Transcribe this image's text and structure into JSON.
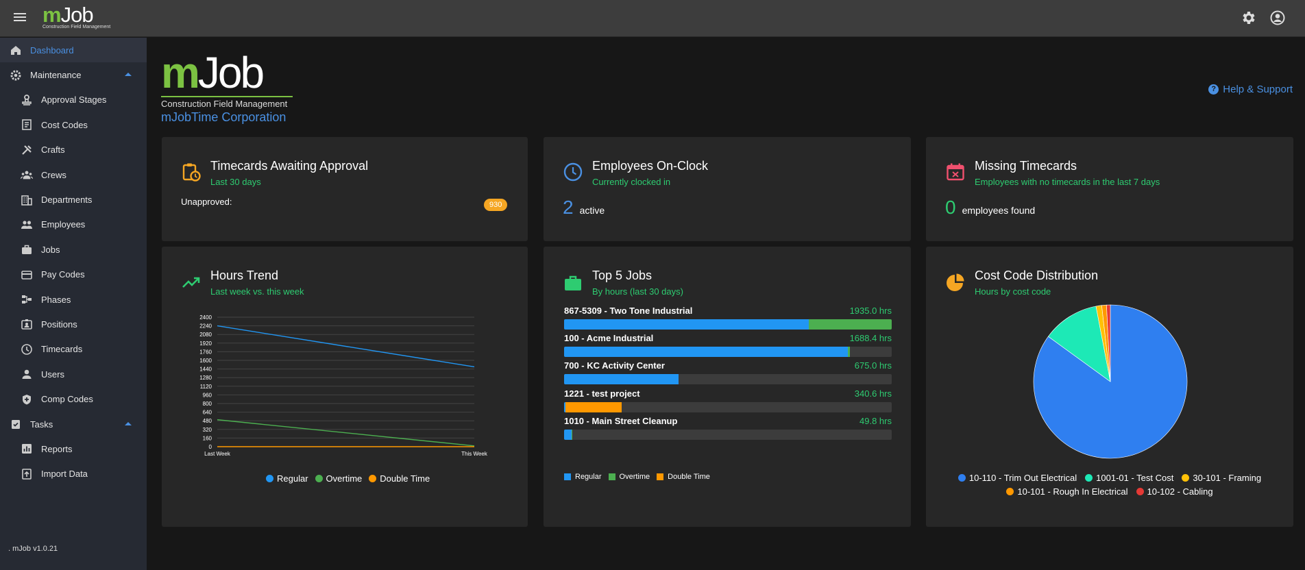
{
  "header": {
    "logo_m": "m",
    "logo_job": "Job",
    "logo_sub": "Construction Field Management"
  },
  "sidebar": {
    "items": [
      {
        "label": "Dashboard",
        "icon": "home-icon",
        "level": "top",
        "active": true
      },
      {
        "label": "Maintenance",
        "icon": "gear-icon",
        "level": "top",
        "expanded": true
      },
      {
        "label": "Approval Stages",
        "icon": "stamp-icon",
        "level": "sub"
      },
      {
        "label": "Cost Codes",
        "icon": "document-icon",
        "level": "sub"
      },
      {
        "label": "Crafts",
        "icon": "tools-icon",
        "level": "sub"
      },
      {
        "label": "Crews",
        "icon": "crew-icon",
        "level": "sub"
      },
      {
        "label": "Departments",
        "icon": "building-icon",
        "level": "sub"
      },
      {
        "label": "Employees",
        "icon": "people-icon",
        "level": "sub"
      },
      {
        "label": "Jobs",
        "icon": "briefcase-icon",
        "level": "sub"
      },
      {
        "label": "Pay Codes",
        "icon": "credit-card-icon",
        "level": "sub"
      },
      {
        "label": "Phases",
        "icon": "flow-icon",
        "level": "sub"
      },
      {
        "label": "Positions",
        "icon": "badge-icon",
        "level": "sub"
      },
      {
        "label": "Timecards",
        "icon": "clock-icon",
        "level": "sub"
      },
      {
        "label": "Users",
        "icon": "user-icon",
        "level": "sub"
      },
      {
        "label": "Comp Codes",
        "icon": "shield-icon",
        "level": "sub"
      },
      {
        "label": "Tasks",
        "icon": "task-icon",
        "level": "top",
        "expanded": true
      },
      {
        "label": "Reports",
        "icon": "report-icon",
        "level": "sub"
      },
      {
        "label": "Import Data",
        "icon": "upload-icon",
        "level": "sub"
      }
    ],
    "version": ". mJob v1.0.21"
  },
  "brand": {
    "logo_m": "m",
    "logo_job": "Job",
    "logo_sub": "Construction Field Management",
    "company": "mJobTime Corporation"
  },
  "help": {
    "label": "Help & Support"
  },
  "cards": {
    "timecards": {
      "title": "Timecards Awaiting Approval",
      "subtitle": "Last 30 days",
      "label": "Unapproved:",
      "badge": "930"
    },
    "onclock": {
      "title": "Employees On-Clock",
      "subtitle": "Currently clocked in",
      "count": "2",
      "suffix": "active"
    },
    "missing": {
      "title": "Missing Timecards",
      "subtitle": "Employees with no timecards in the last 7 days",
      "count": "0",
      "suffix": "employees found"
    },
    "hours": {
      "title": "Hours Trend",
      "subtitle": "Last week vs. this week"
    },
    "top5": {
      "title": "Top 5 Jobs",
      "subtitle": "By hours (last 30 days)"
    },
    "costcode": {
      "title": "Cost Code Distribution",
      "subtitle": "Hours by cost code"
    }
  },
  "colors": {
    "accent": "#4a90e2",
    "green": "#2ecc71",
    "regular": "#2196f3",
    "overtime": "#4caf50",
    "double": "#ff9800"
  },
  "chart_data": [
    {
      "type": "line",
      "categories": [
        "Last Week",
        "This Week"
      ],
      "yticks": [
        0,
        160,
        320,
        480,
        640,
        800,
        960,
        1120,
        1280,
        1440,
        1600,
        1760,
        1920,
        2080,
        2240,
        2400
      ],
      "ylim": [
        0,
        2400
      ],
      "grid": true,
      "legend": "bottom",
      "series": [
        {
          "name": "Regular",
          "color": "#2196f3",
          "values": [
            2240,
            1480
          ]
        },
        {
          "name": "Overtime",
          "color": "#4caf50",
          "values": [
            500,
            15
          ]
        },
        {
          "name": "Double Time",
          "color": "#ff9800",
          "values": [
            0,
            0
          ]
        }
      ]
    },
    {
      "type": "bar",
      "orientation": "horizontal-stacked",
      "max": 1935.0,
      "legend": "bottom-left",
      "series_names": [
        "Regular",
        "Overtime",
        "Double Time"
      ],
      "series_colors": [
        "#2196f3",
        "#4caf50",
        "#ff9800"
      ],
      "jobs": [
        {
          "name": "867-5309 - Two Tone Industrial",
          "hours_label": "1935.0 hrs",
          "regular": 1445,
          "overtime": 490,
          "double": 0
        },
        {
          "name": "100 - Acme Industrial",
          "hours_label": "1688.4 hrs",
          "regular": 1675,
          "overtime": 13.4,
          "double": 0
        },
        {
          "name": "700 - KC Activity Center",
          "hours_label": "675.0 hrs",
          "regular": 675,
          "overtime": 0,
          "double": 0
        },
        {
          "name": "1221 - test project",
          "hours_label": "340.6 hrs",
          "regular": 10,
          "overtime": 0,
          "double": 330.6
        },
        {
          "name": "1010 - Main Street Cleanup",
          "hours_label": "49.8 hrs",
          "regular": 44,
          "overtime": 5.8,
          "double": 0
        }
      ]
    },
    {
      "type": "pie",
      "legend": "bottom",
      "slices": [
        {
          "label": "10-110 - Trim Out Electrical",
          "value": 85,
          "color": "#2f7ff0"
        },
        {
          "label": "1001-01 - Test Cost",
          "value": 12,
          "color": "#1de9b6"
        },
        {
          "label": "30-101 - Framing",
          "value": 1.2,
          "color": "#ffc107"
        },
        {
          "label": "10-101 - Rough In Electrical",
          "value": 1.0,
          "color": "#ff9800"
        },
        {
          "label": "10-102 - Cabling",
          "value": 0.8,
          "color": "#e53935"
        }
      ]
    }
  ]
}
